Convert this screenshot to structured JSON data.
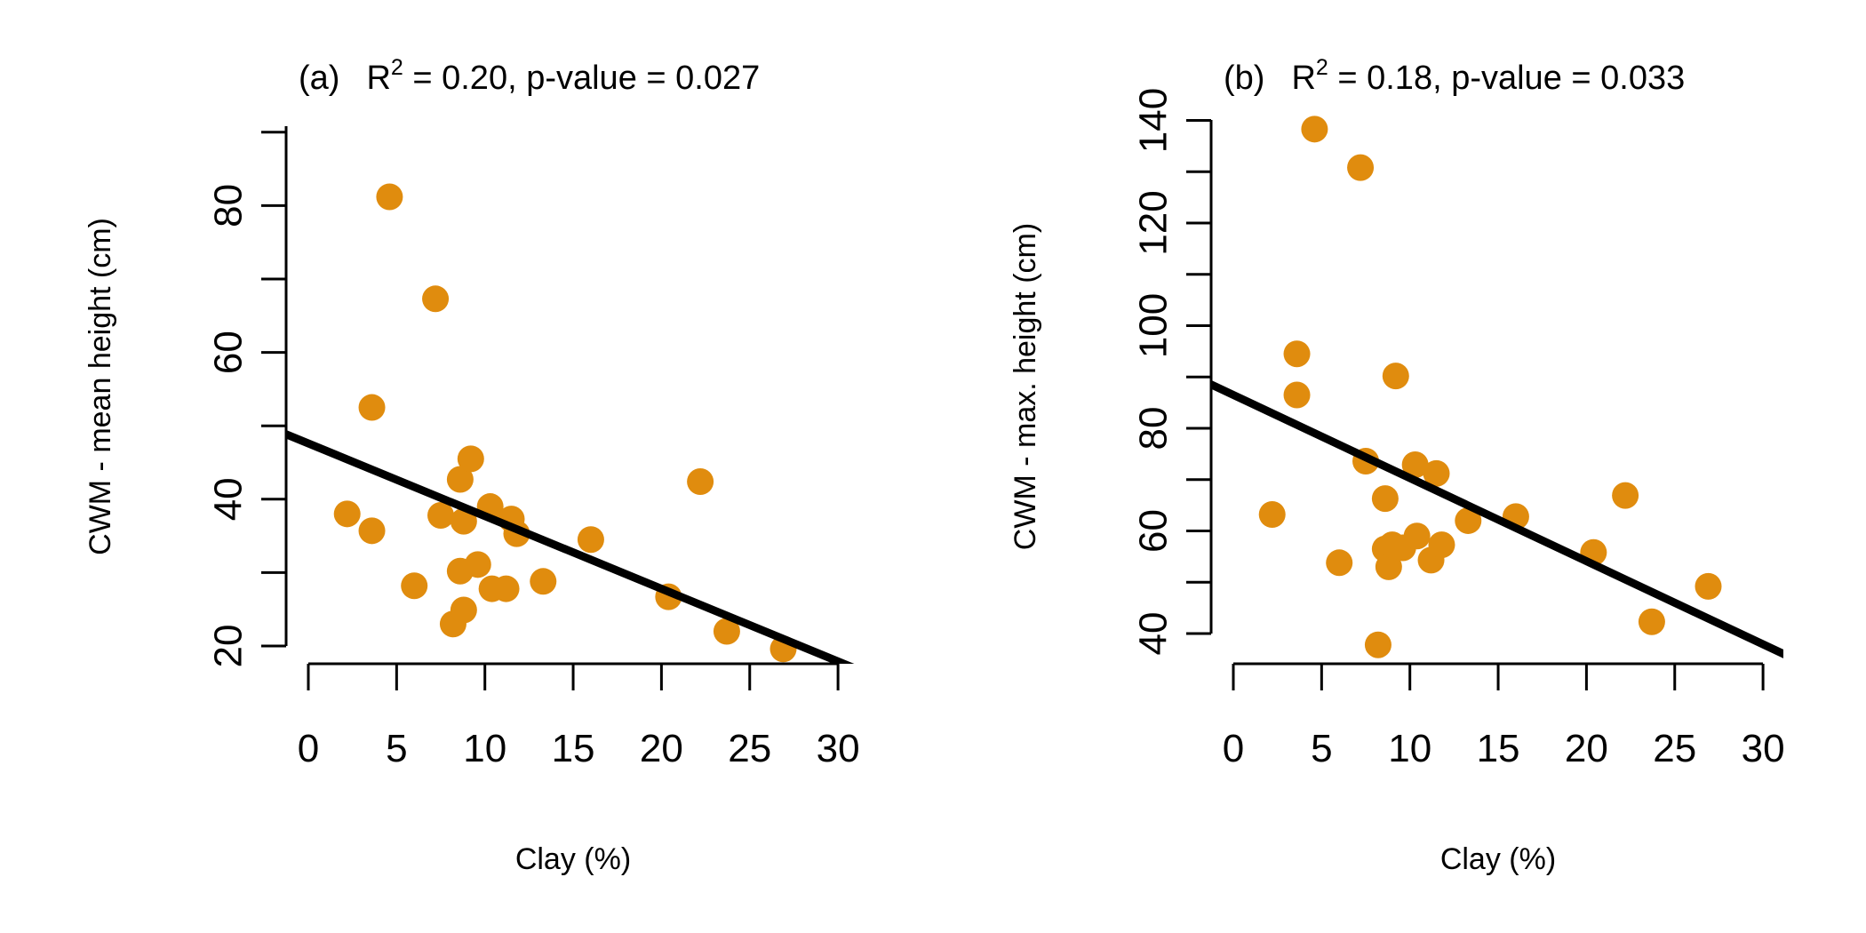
{
  "chart_data": [
    {
      "type": "scatter",
      "panel": "(a)",
      "title_prefix": "R",
      "title_superscript": "2",
      "title_suffix": " = 0.20, p-value = 0.027",
      "xlabel": "Clay (%)",
      "ylabel": "CWM - mean height (cm)",
      "xlim": [
        0,
        30
      ],
      "ylim": [
        20,
        90
      ],
      "xticks": [
        0,
        5,
        10,
        15,
        20,
        25,
        30
      ],
      "yticks": [
        20,
        40,
        60,
        80
      ],
      "point_color": "#E08C0E",
      "fit_line": {
        "intercept": 47.6,
        "slope": -0.99
      },
      "points": [
        {
          "x": 2.2,
          "y": 38.0
        },
        {
          "x": 3.6,
          "y": 52.5
        },
        {
          "x": 3.6,
          "y": 35.7
        },
        {
          "x": 4.6,
          "y": 81.2
        },
        {
          "x": 6.0,
          "y": 28.2
        },
        {
          "x": 7.2,
          "y": 67.3
        },
        {
          "x": 7.5,
          "y": 37.8
        },
        {
          "x": 8.2,
          "y": 23.0
        },
        {
          "x": 8.6,
          "y": 42.7
        },
        {
          "x": 8.6,
          "y": 30.2
        },
        {
          "x": 8.8,
          "y": 37.0
        },
        {
          "x": 8.8,
          "y": 24.9
        },
        {
          "x": 9.2,
          "y": 45.5
        },
        {
          "x": 9.6,
          "y": 31.1
        },
        {
          "x": 10.3,
          "y": 39.0
        },
        {
          "x": 10.4,
          "y": 27.8
        },
        {
          "x": 11.2,
          "y": 27.8
        },
        {
          "x": 11.5,
          "y": 37.3
        },
        {
          "x": 11.8,
          "y": 35.3
        },
        {
          "x": 13.3,
          "y": 28.8
        },
        {
          "x": 16.0,
          "y": 34.5
        },
        {
          "x": 20.4,
          "y": 26.7
        },
        {
          "x": 22.2,
          "y": 42.4
        },
        {
          "x": 23.7,
          "y": 22.0
        },
        {
          "x": 26.9,
          "y": 19.6
        }
      ]
    },
    {
      "type": "scatter",
      "panel": "(b)",
      "title_prefix": "R",
      "title_superscript": "2",
      "title_suffix": " = 0.18, p-value = 0.033",
      "xlabel": "Clay (%)",
      "ylabel": "CWM - max. height (cm)",
      "xlim": [
        0,
        30
      ],
      "ylim": [
        40,
        140
      ],
      "xticks": [
        0,
        5,
        10,
        15,
        20,
        25,
        30
      ],
      "yticks": [
        40,
        60,
        80,
        100,
        120,
        140
      ],
      "point_color": "#E08C0E",
      "fit_line": {
        "intercept": 86.5,
        "slope": -1.62
      },
      "points": [
        {
          "x": 2.2,
          "y": 63.2
        },
        {
          "x": 3.6,
          "y": 94.5
        },
        {
          "x": 3.6,
          "y": 86.5
        },
        {
          "x": 4.6,
          "y": 138.3
        },
        {
          "x": 6.0,
          "y": 53.8
        },
        {
          "x": 7.2,
          "y": 130.8
        },
        {
          "x": 7.5,
          "y": 73.6
        },
        {
          "x": 8.2,
          "y": 37.8
        },
        {
          "x": 8.6,
          "y": 66.3
        },
        {
          "x": 8.6,
          "y": 56.5
        },
        {
          "x": 8.8,
          "y": 53.0
        },
        {
          "x": 9.0,
          "y": 57.3
        },
        {
          "x": 9.2,
          "y": 90.2
        },
        {
          "x": 9.6,
          "y": 56.7
        },
        {
          "x": 10.3,
          "y": 72.9
        },
        {
          "x": 10.4,
          "y": 59.0
        },
        {
          "x": 11.2,
          "y": 54.3
        },
        {
          "x": 11.5,
          "y": 71.2
        },
        {
          "x": 11.8,
          "y": 57.3
        },
        {
          "x": 13.3,
          "y": 62.0
        },
        {
          "x": 16.0,
          "y": 62.8
        },
        {
          "x": 20.4,
          "y": 55.8
        },
        {
          "x": 22.2,
          "y": 66.9
        },
        {
          "x": 23.7,
          "y": 42.3
        },
        {
          "x": 26.9,
          "y": 49.2
        }
      ]
    }
  ]
}
